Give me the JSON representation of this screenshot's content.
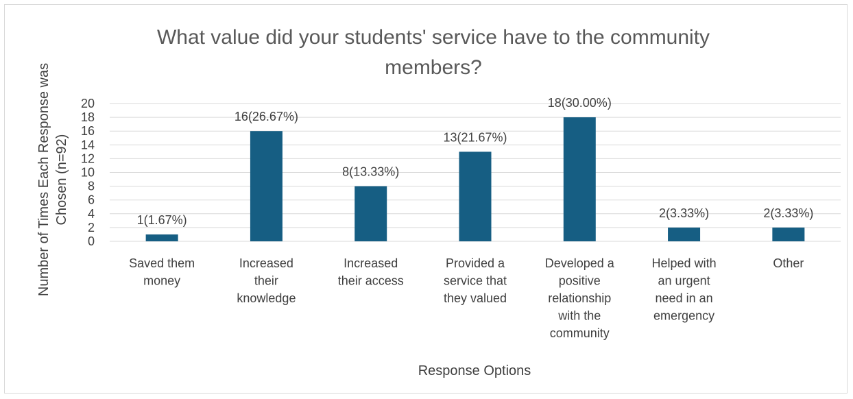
{
  "chart_data": {
    "type": "bar",
    "title_lines": [
      "What value did your students' service have to the community",
      "members?"
    ],
    "ylabel_lines": [
      "Number of Times Each Response was",
      "Chosen (n=92)"
    ],
    "xlabel": "Response Options",
    "categories": [
      [
        "Saved them",
        "money"
      ],
      [
        "Increased",
        "their",
        "knowledge"
      ],
      [
        "Increased",
        "their access"
      ],
      [
        "Provided a",
        "service that",
        "they valued"
      ],
      [
        "Developed a",
        "positive",
        "relationship",
        "with the",
        "community"
      ],
      [
        "Helped with",
        "an urgent",
        "need in an",
        "emergency"
      ],
      [
        "Other"
      ]
    ],
    "values": [
      1,
      16,
      8,
      13,
      18,
      2,
      2
    ],
    "data_labels": [
      "1(1.67%)",
      "16(26.67%)",
      "8(13.33%)",
      "13(21.67%)",
      "18(30.00%)",
      "2(3.33%)",
      "2(3.33%)"
    ],
    "yticks": [
      "0",
      "2",
      "4",
      "6",
      "8",
      "10",
      "12",
      "14",
      "16",
      "18",
      "20"
    ],
    "ylim": [
      0,
      20
    ],
    "grid": true,
    "legend": "none",
    "bar_color": "#165e83",
    "grid_color": "#d9d9d9"
  }
}
